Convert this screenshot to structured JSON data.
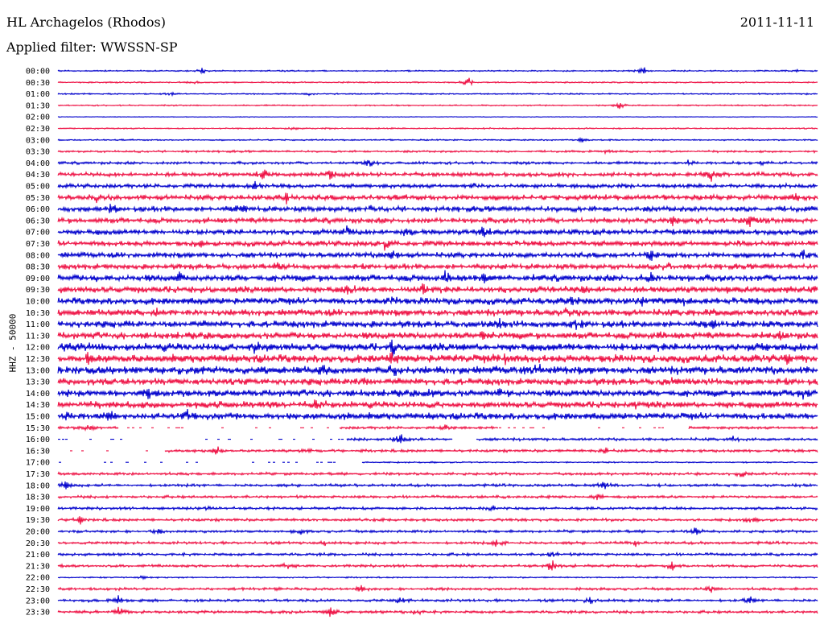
{
  "header": {
    "station": "HL Archagelos (Rhodos)",
    "date": "2011-11-11",
    "filter": "Applied filter: WWSSN-SP"
  },
  "chart_data": {
    "type": "line",
    "title": "HL Archagelos (Rhodos)",
    "date": "2011-11-11",
    "filter": "WWSSN-SP",
    "ylabel": "HHZ - 50000",
    "colors": [
      "#0000cc",
      "#ee1144"
    ],
    "lines": [
      {
        "time": "00:00",
        "activity": 1,
        "events": [
          [
            0.19,
            5
          ],
          [
            0.77,
            8
          ],
          [
            0.97,
            3
          ]
        ]
      },
      {
        "time": "00:30",
        "activity": 1,
        "events": [
          [
            0.54,
            9
          ],
          [
            0.18,
            2
          ]
        ]
      },
      {
        "time": "01:00",
        "activity": 1,
        "events": [
          [
            0.15,
            3
          ],
          [
            0.33,
            2
          ]
        ]
      },
      {
        "time": "01:30",
        "activity": 1,
        "events": [
          [
            0.74,
            6
          ]
        ]
      },
      {
        "time": "02:00",
        "activity": 0.5,
        "events": []
      },
      {
        "time": "02:30",
        "activity": 1,
        "events": [
          [
            0.31,
            2
          ]
        ]
      },
      {
        "time": "03:00",
        "activity": 1,
        "events": [
          [
            0.69,
            4
          ]
        ]
      },
      {
        "time": "03:30",
        "activity": 1.5,
        "events": [
          [
            0.72,
            2
          ]
        ]
      },
      {
        "time": "04:00",
        "activity": 2,
        "events": [
          [
            0.41,
            8
          ],
          [
            0.83,
            5
          ],
          [
            0.93,
            4
          ]
        ]
      },
      {
        "time": "04:30",
        "activity": 3,
        "events": [
          [
            0.27,
            7
          ],
          [
            0.36,
            8
          ],
          [
            0.86,
            9
          ]
        ]
      },
      {
        "time": "05:00",
        "activity": 3,
        "events": [
          [
            0.26,
            6
          ],
          [
            0.55,
            4
          ]
        ]
      },
      {
        "time": "05:30",
        "activity": 4,
        "events": [
          [
            0.05,
            6
          ],
          [
            0.3,
            8
          ],
          [
            0.97,
            5
          ]
        ]
      },
      {
        "time": "06:00",
        "activity": 4,
        "events": [
          [
            0.07,
            5
          ],
          [
            0.24,
            7
          ],
          [
            0.41,
            4
          ]
        ]
      },
      {
        "time": "06:30",
        "activity": 4,
        "events": [
          [
            0.81,
            7
          ],
          [
            0.91,
            8
          ]
        ]
      },
      {
        "time": "07:00",
        "activity": 4,
        "events": [
          [
            0.38,
            9
          ],
          [
            0.46,
            5
          ],
          [
            0.56,
            8
          ]
        ]
      },
      {
        "time": "07:30",
        "activity": 4,
        "events": [
          [
            0.19,
            5
          ],
          [
            0.43,
            9
          ],
          [
            0.9,
            6
          ]
        ]
      },
      {
        "time": "08:00",
        "activity": 4,
        "events": [
          [
            0.44,
            8
          ],
          [
            0.78,
            7
          ],
          [
            0.98,
            6
          ]
        ]
      },
      {
        "time": "08:30",
        "activity": 4,
        "events": [
          [
            0.29,
            4
          ],
          [
            0.8,
            6
          ]
        ]
      },
      {
        "time": "09:00",
        "activity": 5,
        "events": [
          [
            0.16,
            6
          ],
          [
            0.51,
            8
          ],
          [
            0.56,
            6
          ],
          [
            0.78,
            7
          ]
        ]
      },
      {
        "time": "09:30",
        "activity": 5,
        "events": [
          [
            0.38,
            6
          ],
          [
            0.48,
            8
          ],
          [
            0.69,
            5
          ]
        ]
      },
      {
        "time": "10:00",
        "activity": 5,
        "events": [
          [
            0.44,
            9
          ],
          [
            0.68,
            8
          ],
          [
            0.77,
            7
          ],
          [
            0.82,
            6
          ]
        ]
      },
      {
        "time": "10:30",
        "activity": 5,
        "events": [
          [
            0.13,
            4
          ],
          [
            0.67,
            5
          ],
          [
            0.86,
            7
          ]
        ]
      },
      {
        "time": "11:00",
        "activity": 5,
        "events": [
          [
            0.58,
            6
          ],
          [
            0.68,
            7
          ],
          [
            0.86,
            6
          ]
        ]
      },
      {
        "time": "11:30",
        "activity": 5,
        "events": [
          [
            0.56,
            7
          ],
          [
            0.79,
            6
          ],
          [
            0.95,
            5
          ]
        ]
      },
      {
        "time": "12:00",
        "activity": 6,
        "events": [
          [
            0.03,
            6
          ],
          [
            0.26,
            7
          ],
          [
            0.44,
            8
          ],
          [
            0.94,
            8
          ]
        ]
      },
      {
        "time": "12:30",
        "activity": 6,
        "events": [
          [
            0.04,
            7
          ],
          [
            0.44,
            6
          ],
          [
            0.59,
            8
          ],
          [
            0.96,
            6
          ]
        ]
      },
      {
        "time": "13:00",
        "activity": 6,
        "events": [
          [
            0.02,
            6
          ],
          [
            0.35,
            6
          ],
          [
            0.44,
            9
          ],
          [
            0.63,
            7
          ]
        ]
      },
      {
        "time": "13:30",
        "activity": 5,
        "events": [
          [
            0.4,
            5
          ],
          [
            0.81,
            6
          ]
        ]
      },
      {
        "time": "14:00",
        "activity": 5,
        "events": [
          [
            0.12,
            8
          ],
          [
            0.49,
            7
          ],
          [
            0.58,
            6
          ],
          [
            0.98,
            7
          ]
        ]
      },
      {
        "time": "14:30",
        "activity": 5,
        "events": [
          [
            0.34,
            7
          ],
          [
            0.76,
            8
          ]
        ]
      },
      {
        "time": "15:00",
        "activity": 5,
        "events": [
          [
            0.01,
            6
          ],
          [
            0.07,
            5
          ],
          [
            0.17,
            5
          ],
          [
            0.38,
            4
          ]
        ]
      },
      {
        "time": "15:30",
        "activity": 2,
        "events": [
          [
            0.04,
            5
          ],
          [
            0.51,
            4
          ]
        ],
        "gaps": [
          [
            0.08,
            0.37
          ],
          [
            0.58,
            0.83
          ]
        ]
      },
      {
        "time": "16:00",
        "activity": 2,
        "events": [
          [
            0.45,
            9
          ],
          [
            0.89,
            5
          ]
        ],
        "gaps": [
          [
            0.0,
            0.38
          ],
          [
            0.52,
            0.55
          ]
        ]
      },
      {
        "time": "16:30",
        "activity": 2,
        "events": [
          [
            0.21,
            6
          ],
          [
            0.33,
            4
          ],
          [
            0.72,
            5
          ]
        ],
        "gaps": [
          [
            0.0,
            0.14
          ]
        ]
      },
      {
        "time": "17:00",
        "activity": 1,
        "events": [
          [
            0.36,
            3
          ]
        ],
        "gaps": [
          [
            0.0,
            0.4
          ]
        ]
      },
      {
        "time": "17:30",
        "activity": 2,
        "events": [
          [
            0.9,
            4
          ]
        ]
      },
      {
        "time": "18:00",
        "activity": 2,
        "events": [
          [
            0.01,
            7
          ],
          [
            0.72,
            6
          ]
        ]
      },
      {
        "time": "18:30",
        "activity": 2,
        "events": [
          [
            0.71,
            4
          ]
        ]
      },
      {
        "time": "19:00",
        "activity": 2,
        "events": [
          [
            0.2,
            4
          ],
          [
            0.57,
            6
          ]
        ]
      },
      {
        "time": "19:30",
        "activity": 2,
        "events": [
          [
            0.03,
            5
          ],
          [
            0.91,
            5
          ]
        ]
      },
      {
        "time": "20:00",
        "activity": 2,
        "events": [
          [
            0.13,
            4
          ],
          [
            0.32,
            6
          ],
          [
            0.84,
            8
          ]
        ]
      },
      {
        "time": "20:30",
        "activity": 2,
        "events": [
          [
            0.35,
            6
          ],
          [
            0.58,
            8
          ],
          [
            0.76,
            5
          ]
        ]
      },
      {
        "time": "21:00",
        "activity": 2,
        "events": [
          [
            0.65,
            4
          ]
        ]
      },
      {
        "time": "21:30",
        "activity": 2,
        "events": [
          [
            0.3,
            5
          ],
          [
            0.65,
            8
          ],
          [
            0.81,
            7
          ]
        ]
      },
      {
        "time": "22:00",
        "activity": 1,
        "events": [
          [
            0.11,
            3
          ]
        ]
      },
      {
        "time": "22:30",
        "activity": 2,
        "events": [
          [
            0.4,
            6
          ],
          [
            0.86,
            4
          ]
        ]
      },
      {
        "time": "23:00",
        "activity": 2,
        "events": [
          [
            0.08,
            7
          ],
          [
            0.45,
            6
          ],
          [
            0.7,
            5
          ],
          [
            0.91,
            6
          ]
        ]
      },
      {
        "time": "23:30",
        "activity": 2,
        "events": [
          [
            0.08,
            7
          ],
          [
            0.36,
            8
          ],
          [
            0.47,
            5
          ]
        ]
      }
    ]
  }
}
